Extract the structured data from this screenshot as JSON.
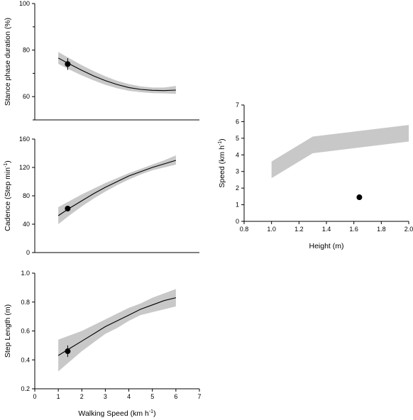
{
  "chart_data": [
    {
      "id": "stance",
      "type": "line",
      "ylabel": "Stance phase duration (%)",
      "ylabel_sup": "",
      "ylabel_tail": "",
      "xlabel": "",
      "xlim": [
        0,
        7
      ],
      "ylim": [
        50,
        100
      ],
      "yticks": [
        60,
        80,
        100
      ],
      "yticks_minor": [
        50,
        70,
        90
      ],
      "xticks": [],
      "fit": {
        "x": [
          1.0,
          1.5,
          2.0,
          2.5,
          3.0,
          3.5,
          4.0,
          4.5,
          5.0,
          5.5,
          6.0
        ],
        "y": [
          76.6,
          73.9,
          71.3,
          68.9,
          66.9,
          65.2,
          63.9,
          63.1,
          62.7,
          62.6,
          62.8
        ]
      },
      "band_upper": [
        79.2,
        76.3,
        73.5,
        71.0,
        68.7,
        66.8,
        65.4,
        64.4,
        63.9,
        63.9,
        64.6
      ],
      "band_lower": [
        74.1,
        71.5,
        69.1,
        67.0,
        65.1,
        63.6,
        62.5,
        61.9,
        61.5,
        61.4,
        61.2
      ],
      "point": {
        "x": 1.4,
        "y": 74.0,
        "err": 2.5
      }
    },
    {
      "id": "cadence",
      "type": "line",
      "ylabel": "Cadence (Step min",
      "ylabel_sup": "-1",
      "ylabel_tail": ")",
      "xlabel": "",
      "xlim": [
        0,
        7
      ],
      "ylim": [
        0,
        160
      ],
      "yticks": [
        0,
        40,
        80,
        120,
        160
      ],
      "yticks_minor": [],
      "xticks": [],
      "fit": {
        "x": [
          1.0,
          1.5,
          2.0,
          2.5,
          3.0,
          3.5,
          4.0,
          4.5,
          5.0,
          5.5,
          6.0
        ],
        "y": [
          52,
          63,
          73,
          83,
          92,
          100,
          108,
          114,
          120,
          125,
          130
        ]
      },
      "band_upper": [
        64,
        73,
        82,
        90,
        98,
        105,
        112,
        118,
        124,
        130,
        137
      ],
      "band_lower": [
        40,
        53,
        65,
        76,
        86,
        95,
        103,
        110,
        116,
        120,
        124
      ],
      "point": {
        "x": 1.4,
        "y": 62,
        "err": 3
      }
    },
    {
      "id": "steplength",
      "type": "line",
      "ylabel": "Step Length (m)",
      "ylabel_sup": "",
      "ylabel_tail": "",
      "xlabel": "Walking Speed (km h",
      "xlabel_sup": "-1",
      "xlabel_tail": ")",
      "xlim": [
        0,
        7
      ],
      "ylim": [
        0.2,
        1.0
      ],
      "yticks": [
        0.2,
        0.4,
        0.6,
        0.8,
        1.0
      ],
      "yticks_minor": [],
      "xticks": [
        0,
        1,
        2,
        3,
        4,
        5,
        6,
        7
      ],
      "fit": {
        "x": [
          1.0,
          1.5,
          2.0,
          2.5,
          3.0,
          3.5,
          4.0,
          4.5,
          5.0,
          5.5,
          6.0
        ],
        "y": [
          0.43,
          0.48,
          0.53,
          0.58,
          0.63,
          0.67,
          0.71,
          0.75,
          0.78,
          0.81,
          0.83
        ]
      },
      "band_upper": [
        0.54,
        0.57,
        0.6,
        0.64,
        0.68,
        0.72,
        0.76,
        0.79,
        0.83,
        0.86,
        0.89
      ],
      "band_lower": [
        0.32,
        0.39,
        0.46,
        0.52,
        0.58,
        0.62,
        0.67,
        0.71,
        0.73,
        0.75,
        0.77
      ],
      "point": {
        "x": 1.4,
        "y": 0.46,
        "err": 0.04
      }
    },
    {
      "id": "height",
      "type": "area",
      "ylabel": "Speed (km h",
      "ylabel_sup": "-1",
      "ylabel_tail": ")",
      "xlabel": "Height (m)",
      "xlabel_sup": "",
      "xlabel_tail": "",
      "xlim": [
        0.8,
        2.0
      ],
      "ylim": [
        0,
        7
      ],
      "yticks": [
        0,
        1,
        2,
        3,
        4,
        5,
        6,
        7
      ],
      "xticks": [
        0.8,
        1.0,
        1.2,
        1.4,
        1.6,
        1.8,
        2.0
      ],
      "band": {
        "x": [
          1.0,
          1.3,
          2.0
        ],
        "upper": [
          3.6,
          5.1,
          5.8
        ],
        "lower": [
          2.6,
          4.1,
          4.8
        ]
      },
      "point": {
        "x": 1.64,
        "y": 1.45
      }
    }
  ]
}
